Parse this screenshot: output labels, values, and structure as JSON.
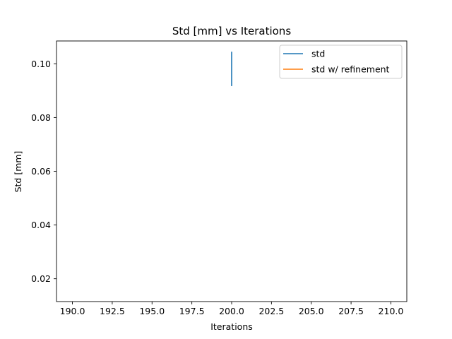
{
  "chart_data": {
    "type": "line",
    "title": "Std [mm] vs Iterations",
    "xlabel": "Iterations",
    "ylabel": "Std [mm]",
    "xlim": [
      189.0,
      211.0
    ],
    "ylim": [
      0.0115,
      0.1085
    ],
    "xticks": [
      190.0,
      192.5,
      195.0,
      197.5,
      200.0,
      202.5,
      205.0,
      207.5,
      210.0
    ],
    "xtick_labels": [
      "190.0",
      "192.5",
      "195.0",
      "197.5",
      "200.0",
      "202.5",
      "205.0",
      "207.5",
      "210.0"
    ],
    "yticks": [
      0.02,
      0.04,
      0.06,
      0.08,
      0.1
    ],
    "ytick_labels": [
      "0.02",
      "0.04",
      "0.06",
      "0.08",
      "0.10"
    ],
    "grid": false,
    "legend_position": "top-right",
    "series": [
      {
        "name": "std",
        "color": "#1f77b4",
        "points": [
          [
            200.0,
            0.0917
          ],
          [
            200.0,
            0.1045
          ]
        ]
      },
      {
        "name": "std w/ refinement",
        "color": "#ff7f0e",
        "points": []
      }
    ]
  }
}
